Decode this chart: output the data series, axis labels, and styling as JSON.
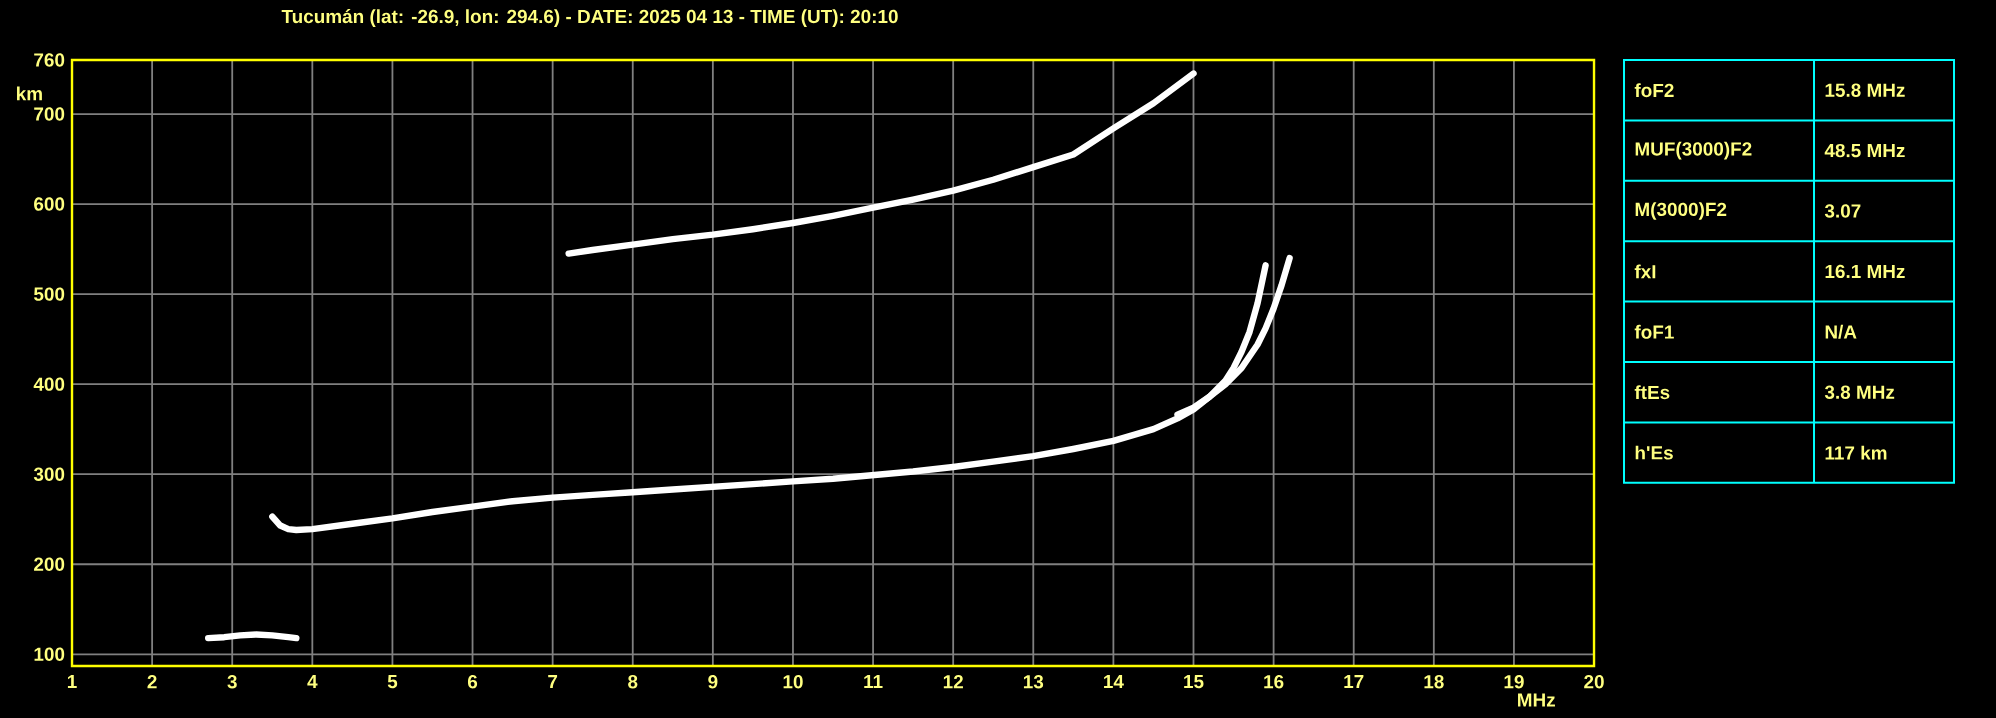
{
  "chart_data": {
    "type": "line",
    "title": "Tucumán (lat: -26.9, lon: 294.6) - DATE: 2025 04 13 - TIME (UT): 20:10",
    "xlabel": "MHz",
    "ylabel": "km",
    "xlim": [
      1,
      20
    ],
    "ylim": [
      87,
      760
    ],
    "xticks": [
      1,
      2,
      3,
      4,
      5,
      6,
      7,
      8,
      9,
      10,
      11,
      12,
      13,
      14,
      15,
      16,
      17,
      18,
      19,
      20
    ],
    "yticks": [
      100,
      200,
      300,
      400,
      500,
      600,
      700,
      760
    ],
    "grid": true,
    "marker": "none",
    "line_style": "solid",
    "series": [
      {
        "color": "#ffffff",
        "x": [
          2.7,
          2.9,
          3.1,
          3.3,
          3.5,
          3.7,
          3.8
        ],
        "values": [
          118,
          119,
          121,
          122,
          121,
          119,
          118
        ]
      },
      {
        "color": "#ffffff",
        "x": [
          3.5,
          3.6,
          3.7,
          3.8,
          4.0,
          4.5,
          5.0,
          5.5,
          6.0,
          6.5,
          7.0,
          7.5,
          8.0,
          8.5,
          9.0,
          9.5,
          10.0,
          10.5,
          11.0,
          11.5,
          12.0,
          12.5,
          13.0,
          13.5,
          14.0,
          14.5,
          14.8,
          15.0,
          15.2,
          15.4,
          15.5,
          15.6,
          15.7,
          15.8,
          15.9
        ],
        "values": [
          253,
          243,
          239,
          238,
          239,
          245,
          251,
          258,
          264,
          270,
          274,
          277,
          280,
          283,
          286,
          289,
          292,
          295,
          299,
          303,
          308,
          314,
          320,
          328,
          337,
          350,
          362,
          372,
          386,
          404,
          418,
          436,
          458,
          490,
          532
        ]
      },
      {
        "color": "#ffffff",
        "x": [
          14.8,
          15.0,
          15.2,
          15.4,
          15.6,
          15.8,
          15.9,
          16.0,
          16.1,
          16.2
        ],
        "values": [
          366,
          374,
          386,
          400,
          418,
          444,
          462,
          484,
          510,
          540
        ]
      },
      {
        "color": "#ffffff",
        "x": [
          7.2,
          7.5,
          8.0,
          8.5,
          9.0,
          9.5,
          10.0,
          10.5,
          11.0,
          11.5,
          12.0,
          12.5,
          13.0,
          13.5,
          14.0,
          14.5,
          15.0
        ],
        "values": [
          545,
          549,
          555,
          561,
          566,
          572,
          579,
          587,
          596,
          605,
          615,
          627,
          641,
          655,
          684,
          712,
          745
        ]
      }
    ],
    "annotations": [
      "foF2",
      "15.8 MHz",
      "MUF(3000)F2",
      "48.5 MHz",
      "M(3000)F2",
      "3.07",
      "fxI",
      "16.1 MHz",
      "foF1",
      "N/A",
      "ftEs",
      "3.8 MHz",
      "h'Es",
      "117 km"
    ]
  }
}
